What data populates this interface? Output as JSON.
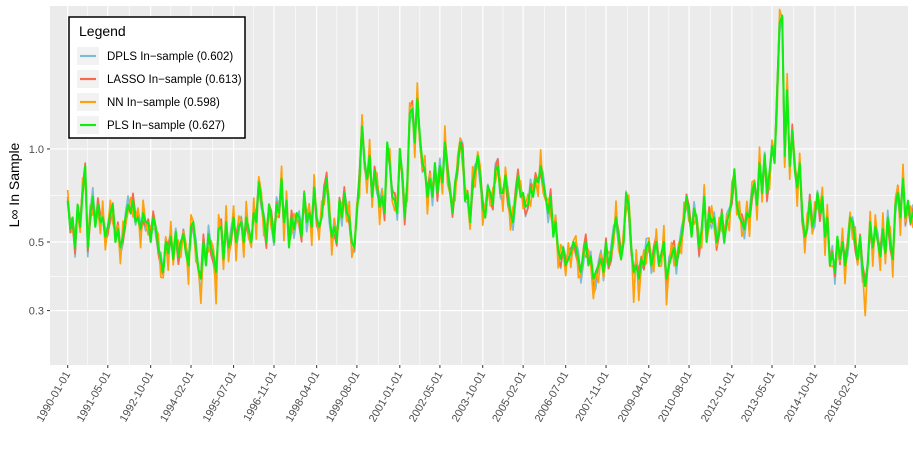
{
  "chart_data": {
    "type": "line",
    "ylabel": "L∞ In Sample",
    "y_scale": "log",
    "ylim": [
      0.2,
      2.9
    ],
    "yticks": [
      0.3,
      0.5,
      1.0
    ],
    "ytick_labels": [
      "0.3",
      "0.5",
      "1.0"
    ],
    "xlim": [
      "1989-06-01",
      "2017-11-01"
    ],
    "xticks": [
      "1990-01-01",
      "1991-05-01",
      "1992-10-01",
      "1994-02-01",
      "1995-07-01",
      "1996-11-01",
      "1998-04-01",
      "1999-08-01",
      "2001-01-01",
      "2002-05-01",
      "2003-10-01",
      "2005-02-01",
      "2006-07-01",
      "2007-11-01",
      "2009-04-01",
      "2010-08-01",
      "2012-01-01",
      "2013-05-01",
      "2014-10-01",
      "2016-02-01"
    ],
    "grid": true,
    "legend_placement": "top-left",
    "legend": {
      "title": "Legend",
      "entries": [
        {
          "label": "DPLS In−sample (0.602)",
          "color": "#7bbdd6"
        },
        {
          "label": "LASSO In−sample (0.613)",
          "color": "#f8694c"
        },
        {
          "label": "NN In−sample (0.598)",
          "color": "#ffa10b"
        },
        {
          "label": "PLS In−sample (0.627)",
          "color": "#11ec11"
        }
      ]
    },
    "x_start": "1990-01-01",
    "x_step": "month",
    "pls_values": [
      0.68,
      0.55,
      0.6,
      0.48,
      0.66,
      0.56,
      0.72,
      0.88,
      0.48,
      0.62,
      0.7,
      0.56,
      0.66,
      0.58,
      0.6,
      0.52,
      0.56,
      0.62,
      0.66,
      0.5,
      0.55,
      0.48,
      0.52,
      0.6,
      0.66,
      0.62,
      0.68,
      0.58,
      0.6,
      0.55,
      0.62,
      0.58,
      0.58,
      0.5,
      0.6,
      0.56,
      0.48,
      0.44,
      0.4,
      0.5,
      0.46,
      0.52,
      0.44,
      0.54,
      0.45,
      0.5,
      0.53,
      0.46,
      0.42,
      0.56,
      0.58,
      0.48,
      0.41,
      0.38,
      0.5,
      0.42,
      0.53,
      0.48,
      0.45,
      0.4,
      0.55,
      0.56,
      0.44,
      0.58,
      0.48,
      0.52,
      0.6,
      0.5,
      0.56,
      0.58,
      0.5,
      0.6,
      0.55,
      0.5,
      0.62,
      0.58,
      0.78,
      0.68,
      0.6,
      0.5,
      0.66,
      0.6,
      0.5,
      0.66,
      0.62,
      0.8,
      0.58,
      0.68,
      0.48,
      0.6,
      0.55,
      0.62,
      0.6,
      0.52,
      0.72,
      0.58,
      0.62,
      0.56,
      0.75,
      0.6,
      0.56,
      0.6,
      0.72,
      0.8,
      0.62,
      0.52,
      0.56,
      0.5,
      0.68,
      0.6,
      0.72,
      0.62,
      0.6,
      0.5,
      0.48,
      0.62,
      0.8,
      1.18,
      0.92,
      0.8,
      0.95,
      0.7,
      0.85,
      0.75,
      0.65,
      0.7,
      0.62,
      1.05,
      0.9,
      0.7,
      0.68,
      0.62,
      1.0,
      0.82,
      0.6,
      0.78,
      1.3,
      1.35,
      1.05,
      1.45,
      1.1,
      0.9,
      0.85,
      0.7,
      0.8,
      0.7,
      0.9,
      0.72,
      0.88,
      0.78,
      1.05,
      0.85,
      0.72,
      0.62,
      0.78,
      0.88,
      1.05,
      0.98,
      0.68,
      0.72,
      0.58,
      0.78,
      0.85,
      0.95,
      0.82,
      0.65,
      0.6,
      0.76,
      0.72,
      0.66,
      0.85,
      0.88,
      0.72,
      0.72,
      0.82,
      0.7,
      0.62,
      0.58,
      0.7,
      0.82,
      0.7,
      0.72,
      0.65,
      0.66,
      0.75,
      0.7,
      0.8,
      0.78,
      0.88,
      0.78,
      0.7,
      0.62,
      0.7,
      0.52,
      0.58,
      0.47,
      0.44,
      0.48,
      0.42,
      0.44,
      0.46,
      0.5,
      0.48,
      0.44,
      0.4,
      0.46,
      0.5,
      0.42,
      0.45,
      0.38,
      0.4,
      0.42,
      0.44,
      0.4,
      0.5,
      0.42,
      0.46,
      0.54,
      0.6,
      0.52,
      0.44,
      0.5,
      0.72,
      0.66,
      0.48,
      0.4,
      0.42,
      0.38,
      0.44,
      0.42,
      0.48,
      0.5,
      0.42,
      0.46,
      0.5,
      0.42,
      0.46,
      0.5,
      0.38,
      0.42,
      0.45,
      0.48,
      0.42,
      0.48,
      0.52,
      0.6,
      0.7,
      0.62,
      0.52,
      0.64,
      0.6,
      0.48,
      0.55,
      0.7,
      0.5,
      0.62,
      0.58,
      0.6,
      0.5,
      0.54,
      0.62,
      0.5,
      0.58,
      0.62,
      0.7,
      0.86,
      0.66,
      0.6,
      0.58,
      0.55,
      0.62,
      0.6,
      0.72,
      0.78,
      0.66,
      0.9,
      0.72,
      0.96,
      0.72,
      0.84,
      1.02,
      0.9,
      1.5,
      2.55,
      2.7,
      0.95,
      1.55,
      0.88,
      1.15,
      0.85,
      0.75,
      0.9,
      0.62,
      0.52,
      0.55,
      0.68,
      0.56,
      0.6,
      0.72,
      0.62,
      0.7,
      0.52,
      0.6,
      0.42,
      0.46,
      0.4,
      0.52,
      0.44,
      0.5,
      0.42,
      0.48,
      0.6,
      0.58,
      0.5,
      0.44,
      0.52,
      0.4,
      0.36,
      0.42,
      0.58,
      0.48,
      0.56,
      0.5,
      0.45,
      0.55,
      0.46,
      0.6,
      0.5,
      0.44,
      0.66,
      0.72,
      0.6,
      0.8,
      0.6,
      0.68,
      0.58,
      0.62,
      0.6,
      0.6,
      0.54,
      0.6,
      0.56,
      0.52,
      0.62,
      0.5,
      0.46,
      0.44,
      0.54,
      0.6,
      0.48,
      0.56,
      0.42,
      0.48,
      0.55,
      0.46,
      0.6,
      0.5,
      0.58,
      0.62,
      0.55,
      0.8,
      0.7,
      0.56,
      0.62,
      0.6,
      0.58,
      0.52,
      0.5,
      0.46,
      0.56,
      0.42,
      0.45,
      0.4,
      0.44,
      0.38,
      0.42,
      0.48,
      0.44,
      0.5,
      0.46,
      0.42,
      0.45,
      0.52,
      0.46,
      0.6,
      0.48,
      0.72,
      0.56,
      0.52,
      0.5,
      0.54,
      0.48,
      0.52,
      0.62,
      0.56,
      0.52,
      0.62,
      0.66,
      0.58,
      0.72,
      0.6,
      1.02,
      1.4,
      1.58,
      0.96,
      0.72,
      0.6,
      0.72,
      0.66,
      0.62,
      0.56,
      0.52,
      0.58,
      0.48,
      0.5,
      0.6,
      0.44,
      0.48,
      0.5,
      0.52,
      0.46,
      0.38,
      0.42,
      0.48,
      0.44,
      0.5
    ]
  }
}
